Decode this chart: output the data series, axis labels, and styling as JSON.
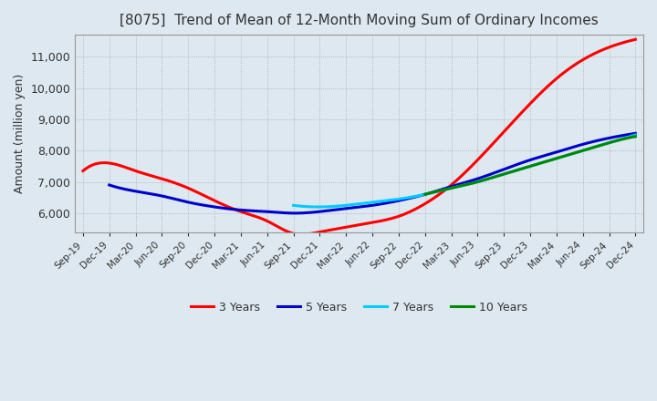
{
  "title": "[8075]  Trend of Mean of 12-Month Moving Sum of Ordinary Incomes",
  "ylabel": "Amount (million yen)",
  "line_colors": {
    "3yr": "#ff0000",
    "5yr": "#0000cc",
    "7yr": "#00ccff",
    "10yr": "#008800"
  },
  "legend_labels": [
    "3 Years",
    "5 Years",
    "7 Years",
    "10 Years"
  ],
  "ylim": [
    5400,
    11700
  ],
  "yticks": [
    6000,
    7000,
    8000,
    9000,
    10000,
    11000
  ],
  "background_color": "#dde8f0",
  "plot_bg": "#dde8f0",
  "grid_color": "#aaaaaa"
}
